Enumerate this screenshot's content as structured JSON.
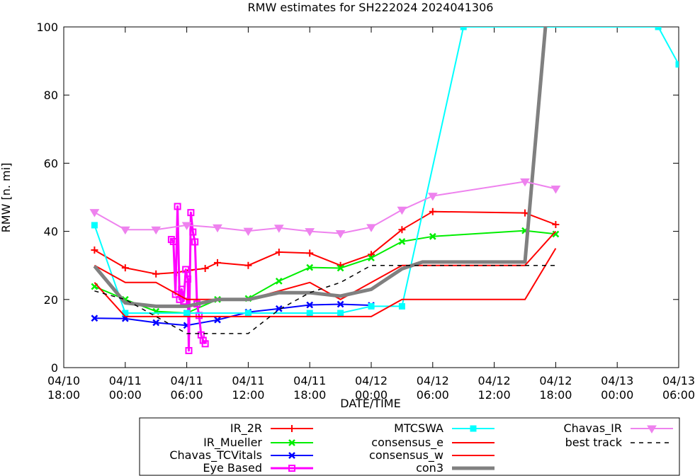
{
  "chart_data": {
    "type": "line",
    "title": "RMW estimates for SH222024 2024041306",
    "xlabel": "DATE/TIME",
    "ylabel": "RMW [n. mi]",
    "xlim": [
      0,
      60
    ],
    "ylim": [
      0,
      100
    ],
    "x_unit": "hours since 04/10 18:00",
    "y_ticks": [
      0,
      20,
      40,
      60,
      80,
      100
    ],
    "x_ticks": [
      {
        "x": 0,
        "date": "04/10",
        "time": "18:00"
      },
      {
        "x": 6,
        "date": "04/11",
        "time": "00:00"
      },
      {
        "x": 12,
        "date": "04/11",
        "time": "06:00"
      },
      {
        "x": 18,
        "date": "04/11",
        "time": "12:00"
      },
      {
        "x": 24,
        "date": "04/11",
        "time": "18:00"
      },
      {
        "x": 30,
        "date": "04/12",
        "time": "00:00"
      },
      {
        "x": 36,
        "date": "04/12",
        "time": "06:00"
      },
      {
        "x": 42,
        "date": "04/12",
        "time": "12:00"
      },
      {
        "x": 48,
        "date": "04/12",
        "time": "18:00"
      },
      {
        "x": 54,
        "date": "04/13",
        "time": "00:00"
      },
      {
        "x": 60,
        "date": "04/13",
        "time": "06:00"
      }
    ],
    "series": [
      {
        "name": "IR_2R",
        "color": "#ff0000",
        "marker": "plus",
        "width": 2,
        "points": [
          [
            3,
            34.5
          ],
          [
            6,
            29.3
          ],
          [
            9,
            27.5
          ],
          [
            11,
            27.9
          ],
          [
            12.3,
            28.6
          ],
          [
            13.8,
            29.1
          ],
          [
            15,
            30.8
          ],
          [
            18,
            30.0
          ],
          [
            21,
            33.9
          ],
          [
            24,
            33.6
          ],
          [
            27,
            30.0
          ],
          [
            30,
            33.2
          ],
          [
            33,
            40.5
          ],
          [
            36,
            45.8
          ],
          [
            45,
            45.4
          ],
          [
            48,
            42.0
          ]
        ]
      },
      {
        "name": "IR_Mueller",
        "color": "#00ee00",
        "marker": "x",
        "width": 2,
        "points": [
          [
            3,
            23.8
          ],
          [
            6,
            20.0
          ],
          [
            9,
            16.5
          ],
          [
            12,
            16.0
          ],
          [
            15,
            20.0
          ],
          [
            18,
            20.3
          ],
          [
            21,
            25.4
          ],
          [
            24,
            29.4
          ],
          [
            27,
            29.2
          ],
          [
            30,
            32.2
          ],
          [
            33,
            37.0
          ],
          [
            36,
            38.5
          ],
          [
            45,
            40.2
          ],
          [
            48,
            39.2
          ]
        ]
      },
      {
        "name": "Chavas_TCVitals",
        "color": "#0000ff",
        "marker": "x",
        "width": 2,
        "points": [
          [
            3,
            14.5
          ],
          [
            6,
            14.4
          ],
          [
            9,
            13.2
          ],
          [
            12,
            12.4
          ],
          [
            15,
            14.0
          ],
          [
            18,
            16.3
          ],
          [
            21,
            17.3
          ],
          [
            24,
            18.4
          ],
          [
            27,
            18.6
          ],
          [
            30,
            18.3
          ]
        ]
      },
      {
        "name": "Eye Based",
        "color": "#ff00ff",
        "marker": "square",
        "width": 3,
        "points": [
          [
            10.5,
            37.6
          ],
          [
            10.7,
            37.0
          ],
          [
            10.9,
            21.5
          ],
          [
            11.1,
            47.3
          ],
          [
            11.3,
            20.0
          ],
          [
            11.5,
            23.0
          ],
          [
            11.7,
            19.5
          ],
          [
            11.9,
            28.8
          ],
          [
            12.1,
            26.0
          ],
          [
            12.2,
            5.0
          ],
          [
            12.4,
            45.5
          ],
          [
            12.6,
            39.8
          ],
          [
            12.8,
            36.9
          ],
          [
            13.0,
            18.7
          ],
          [
            13.2,
            15.3
          ],
          [
            13.4,
            9.6
          ],
          [
            13.6,
            8.0
          ],
          [
            13.8,
            7.0
          ]
        ]
      },
      {
        "name": "MTCSWA",
        "color": "#00ffff",
        "marker": "square_filled",
        "width": 2,
        "points": [
          [
            3,
            41.8
          ],
          [
            6,
            16.0
          ],
          [
            12,
            16.0
          ],
          [
            18,
            16.0
          ],
          [
            24,
            16.0
          ],
          [
            27,
            16.0
          ],
          [
            30,
            18.0
          ],
          [
            33,
            18.0
          ],
          [
            39,
            100
          ],
          [
            58,
            100
          ],
          [
            60,
            89
          ]
        ]
      },
      {
        "name": "consensus_e",
        "color": "#ff0000",
        "marker": "none",
        "width": 2,
        "points": [
          [
            3,
            25.0
          ],
          [
            6,
            15.0
          ],
          [
            12,
            15.0
          ],
          [
            18,
            15.0
          ],
          [
            24,
            15.0
          ],
          [
            30,
            15.0
          ],
          [
            33,
            20.0
          ],
          [
            45,
            20.0
          ],
          [
            48,
            35.0
          ]
        ]
      },
      {
        "name": "consensus_w",
        "color": "#ff0000",
        "marker": "none",
        "width": 2,
        "points": [
          [
            3,
            30.0
          ],
          [
            6,
            25.0
          ],
          [
            9,
            25.0
          ],
          [
            12,
            20.0
          ],
          [
            18,
            20.0
          ],
          [
            24,
            25.0
          ],
          [
            27,
            20.0
          ],
          [
            30,
            25.0
          ],
          [
            33,
            30.0
          ],
          [
            45,
            30.0
          ],
          [
            48,
            40.0
          ]
        ]
      },
      {
        "name": "con3",
        "color": "#808080",
        "marker": "none",
        "width": 5,
        "points": [
          [
            3,
            29.8
          ],
          [
            6,
            19.0
          ],
          [
            9,
            18.0
          ],
          [
            12,
            18.0
          ],
          [
            15,
            20.0
          ],
          [
            18,
            20.0
          ],
          [
            21,
            22.0
          ],
          [
            24,
            22.0
          ],
          [
            27,
            21.0
          ],
          [
            30,
            23.0
          ],
          [
            33,
            29.0
          ],
          [
            35,
            31.0
          ],
          [
            45,
            31.0
          ],
          [
            47,
            100
          ]
        ]
      },
      {
        "name": "Chavas_IR",
        "color": "#ee82ee",
        "marker": "triangle_down",
        "width": 2,
        "points": [
          [
            3,
            45.6
          ],
          [
            6,
            40.5
          ],
          [
            9,
            40.5
          ],
          [
            12,
            41.8
          ],
          [
            15,
            41.1
          ],
          [
            18,
            40.1
          ],
          [
            21,
            41.0
          ],
          [
            24,
            40.0
          ],
          [
            27,
            39.4
          ],
          [
            30,
            41.2
          ],
          [
            33,
            46.3
          ],
          [
            36,
            50.4
          ],
          [
            45,
            54.6
          ],
          [
            48,
            52.5
          ]
        ]
      },
      {
        "name": "best track",
        "color": "#000000",
        "marker": "none",
        "width": 1.5,
        "dash": true,
        "points": [
          [
            3,
            22.5
          ],
          [
            6,
            20.0
          ],
          [
            9,
            15.0
          ],
          [
            12,
            10.0
          ],
          [
            15,
            10.0
          ],
          [
            18,
            10.0
          ],
          [
            21,
            17.0
          ],
          [
            24,
            22.0
          ],
          [
            27,
            25.0
          ],
          [
            30,
            30.0
          ],
          [
            48,
            30.0
          ]
        ]
      }
    ],
    "legend_position": "bottom",
    "legend_order": [
      "IR_2R",
      "IR_Mueller",
      "Chavas_TCVitals",
      "Eye Based",
      "MTCSWA",
      "consensus_e",
      "consensus_w",
      "con3",
      "Chavas_IR",
      "best track"
    ]
  }
}
